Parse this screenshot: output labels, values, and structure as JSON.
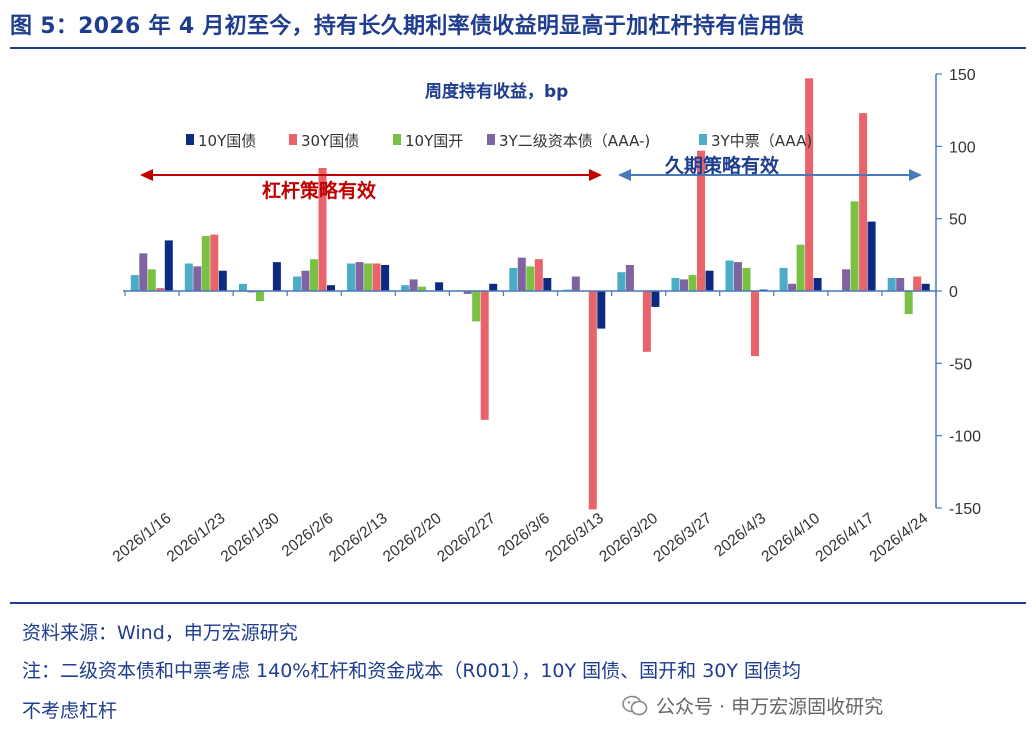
{
  "title": "图 5：2026 年 4 月初至今，持有长久期利率债收益明显高于加杠杆持有信用债",
  "notes": {
    "source": "资料来源：Wind，申万宏源研究",
    "note_line1": "注：二级资本债和中票考虑 140%杠杆和资金成本（R001），10Y 国债、国开和 30Y 国债均",
    "note_line2": "不考虑杠杆"
  },
  "watermark": "公众号 · 申万宏源固收研究",
  "chart_data": {
    "type": "bar",
    "ylabel": "周度持有收益，bp",
    "ylim": [
      -150,
      150
    ],
    "yticks": [
      150,
      100,
      50,
      0,
      -50,
      -100,
      -150
    ],
    "legend_position": "top",
    "grid": false,
    "categories": [
      "2026/1/16",
      "2026/1/23",
      "2026/1/30",
      "2026/2/6",
      "2026/2/13",
      "2026/2/20",
      "2026/2/27",
      "2026/3/6",
      "2026/3/13",
      "2026/3/20",
      "2026/3/27",
      "2026/4/3",
      "2026/4/10",
      "2026/4/17",
      "2026/4/24"
    ],
    "series": [
      {
        "name": "3Y中票（AAA)",
        "color": "#4bacc6",
        "values": [
          11,
          19,
          5,
          10,
          19,
          4,
          0,
          16,
          1,
          13,
          9,
          21,
          16,
          0,
          9
        ]
      },
      {
        "name": "3Y二级资本债（AAA-)",
        "color": "#8064a2",
        "values": [
          26,
          17,
          -1,
          14,
          20,
          8,
          -2,
          23,
          10,
          18,
          8,
          20,
          5,
          15,
          9
        ]
      },
      {
        "name": "10Y国开",
        "color": "#7ac143",
        "values": [
          15,
          38,
          -7,
          22,
          19,
          3,
          -21,
          17,
          0,
          0,
          11,
          16,
          32,
          62,
          -16
        ]
      },
      {
        "name": "30Y国债",
        "color": "#e8636a",
        "values": [
          2,
          39,
          0,
          85,
          19,
          0,
          -89,
          22,
          -151,
          -42,
          97,
          -45,
          147,
          123,
          10
        ]
      },
      {
        "name": "10Y国债",
        "color": "#0d2a82",
        "values": [
          35,
          14,
          20,
          4,
          18,
          6,
          5,
          9,
          -26,
          -11,
          14,
          1,
          9,
          48,
          5
        ]
      }
    ],
    "annotations": [
      {
        "text": "杠杆策略有效",
        "color": "#c00000",
        "from": "2026/1/16",
        "to": "2026/3/13"
      },
      {
        "text": "久期策略有效",
        "color": "#4a79b8",
        "from": "2026/3/20",
        "to": "2026/4/24"
      }
    ]
  }
}
